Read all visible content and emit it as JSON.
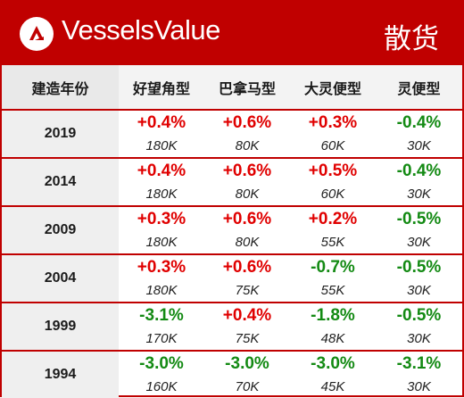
{
  "header": {
    "brand": "VesselsValue",
    "category": "散货",
    "logo_icon": "vesselsvalue-logo-icon",
    "accent_color": "#c00000"
  },
  "table": {
    "columns": [
      "建造年份",
      "好望角型",
      "巴拿马型",
      "大灵便型",
      "灵便型"
    ],
    "rows": [
      {
        "year": "2019",
        "cells": [
          {
            "pct": "+0.4%",
            "value": "180K",
            "trend": "up"
          },
          {
            "pct": "+0.6%",
            "value": "80K",
            "trend": "up"
          },
          {
            "pct": "+0.3%",
            "value": "60K",
            "trend": "up"
          },
          {
            "pct": "-0.4%",
            "value": "30K",
            "trend": "down"
          }
        ]
      },
      {
        "year": "2014",
        "cells": [
          {
            "pct": "+0.4%",
            "value": "180K",
            "trend": "up"
          },
          {
            "pct": "+0.6%",
            "value": "80K",
            "trend": "up"
          },
          {
            "pct": "+0.5%",
            "value": "60K",
            "trend": "up"
          },
          {
            "pct": "-0.4%",
            "value": "30K",
            "trend": "down"
          }
        ]
      },
      {
        "year": "2009",
        "cells": [
          {
            "pct": "+0.3%",
            "value": "180K",
            "trend": "up"
          },
          {
            "pct": "+0.6%",
            "value": "80K",
            "trend": "up"
          },
          {
            "pct": "+0.2%",
            "value": "55K",
            "trend": "up"
          },
          {
            "pct": "-0.5%",
            "value": "30K",
            "trend": "down"
          }
        ]
      },
      {
        "year": "2004",
        "cells": [
          {
            "pct": "+0.3%",
            "value": "180K",
            "trend": "up"
          },
          {
            "pct": "+0.6%",
            "value": "75K",
            "trend": "up"
          },
          {
            "pct": "-0.7%",
            "value": "55K",
            "trend": "down"
          },
          {
            "pct": "-0.5%",
            "value": "30K",
            "trend": "down"
          }
        ]
      },
      {
        "year": "1999",
        "cells": [
          {
            "pct": "-3.1%",
            "value": "170K",
            "trend": "down"
          },
          {
            "pct": "+0.4%",
            "value": "75K",
            "trend": "up"
          },
          {
            "pct": "-1.8%",
            "value": "48K",
            "trend": "down"
          },
          {
            "pct": "-0.5%",
            "value": "30K",
            "trend": "down"
          }
        ]
      },
      {
        "year": "1994",
        "cells": [
          {
            "pct": "-3.0%",
            "value": "160K",
            "trend": "down"
          },
          {
            "pct": "-3.0%",
            "value": "70K",
            "trend": "down"
          },
          {
            "pct": "-3.0%",
            "value": "45K",
            "trend": "down"
          },
          {
            "pct": "-3.1%",
            "value": "30K",
            "trend": "down"
          }
        ]
      }
    ]
  }
}
